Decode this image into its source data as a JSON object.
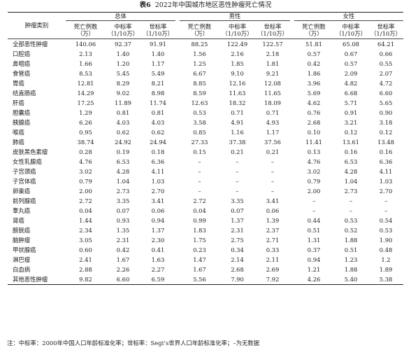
{
  "chart_data": {
    "type": "table",
    "table_number": "表6",
    "title": "2022年中国城市地区恶性肿瘤死亡情况",
    "row_header": "肿瘤类别",
    "groups": [
      "总体",
      "男性",
      "女性"
    ],
    "columns": [
      {
        "name": "死亡例数",
        "unit": "（万）"
      },
      {
        "name": "中标率",
        "unit": "（1/10万）"
      },
      {
        "name": "世标率",
        "unit": "（1/10万）"
      }
    ],
    "rows": [
      {
        "name": "全部恶性肿瘤",
        "values": [
          "140.06",
          "92.37",
          "91.91",
          "88.25",
          "122.49",
          "122.57",
          "51.81",
          "65.08",
          "64.21"
        ]
      },
      {
        "name": "口腔癌",
        "values": [
          "2.13",
          "1.40",
          "1.40",
          "1.56",
          "2.16",
          "2.18",
          "0.57",
          "0.67",
          "0.66"
        ]
      },
      {
        "name": "鼻咽癌",
        "values": [
          "1.66",
          "1.20",
          "1.17",
          "1.25",
          "1.85",
          "1.81",
          "0.42",
          "0.57",
          "0.55"
        ]
      },
      {
        "name": "食管癌",
        "values": [
          "8.53",
          "5.45",
          "5.49",
          "6.67",
          "9.10",
          "9.21",
          "1.86",
          "2.09",
          "2.07"
        ]
      },
      {
        "name": "胃癌",
        "values": [
          "12.81",
          "8.29",
          "8.21",
          "8.85",
          "12.16",
          "12.08",
          "3.96",
          "4.82",
          "4.72"
        ]
      },
      {
        "name": "结直肠癌",
        "values": [
          "14.29",
          "9.02",
          "8.98",
          "8.59",
          "11.63",
          "11.65",
          "5.69",
          "6.68",
          "6.60"
        ]
      },
      {
        "name": "肝癌",
        "values": [
          "17.25",
          "11.89",
          "11.74",
          "12.63",
          "18.32",
          "18.09",
          "4.62",
          "5.71",
          "5.65"
        ]
      },
      {
        "name": "胆囊癌",
        "values": [
          "1.29",
          "0.81",
          "0.81",
          "0.53",
          "0.71",
          "0.71",
          "0.76",
          "0.91",
          "0.90"
        ]
      },
      {
        "name": "胰腺癌",
        "values": [
          "6.26",
          "4.03",
          "4.03",
          "3.58",
          "4.91",
          "4.93",
          "2.68",
          "3.21",
          "3.18"
        ]
      },
      {
        "name": "喉癌",
        "values": [
          "0.95",
          "0.62",
          "0.62",
          "0.85",
          "1.16",
          "1.17",
          "0.10",
          "0.12",
          "0.12"
        ]
      },
      {
        "name": "肺癌",
        "values": [
          "38.74",
          "24.92",
          "24.94",
          "27.33",
          "37.38",
          "37.56",
          "11.41",
          "13.61",
          "13.48"
        ]
      },
      {
        "name": "皮肤黑色素瘤",
        "values": [
          "0.28",
          "0.19",
          "0.18",
          "0.15",
          "0.21",
          "0.21",
          "0.13",
          "0.16",
          "0.16"
        ]
      },
      {
        "name": "女性乳腺癌",
        "values": [
          "4.76",
          "6.53",
          "6.36",
          "–",
          "–",
          "–",
          "4.76",
          "6.53",
          "6.36"
        ]
      },
      {
        "name": "子宫颈癌",
        "values": [
          "3.02",
          "4.28",
          "4.11",
          "–",
          "–",
          "–",
          "3.02",
          "4.28",
          "4.11"
        ]
      },
      {
        "name": "子宫体癌",
        "values": [
          "0.79",
          "1.04",
          "1.03",
          "–",
          "–",
          "–",
          "0.79",
          "1.04",
          "1.03"
        ]
      },
      {
        "name": "卵巢癌",
        "values": [
          "2.00",
          "2.73",
          "2.70",
          "–",
          "–",
          "–",
          "2.00",
          "2.73",
          "2.70"
        ]
      },
      {
        "name": "前列腺癌",
        "values": [
          "2.72",
          "3.35",
          "3.41",
          "2.72",
          "3.35",
          "3.41",
          "–",
          "–",
          "–"
        ]
      },
      {
        "name": "睾丸癌",
        "values": [
          "0.04",
          "0.07",
          "0.06",
          "0.04",
          "0.07",
          "0.06",
          "–",
          "–",
          "–"
        ]
      },
      {
        "name": "肾癌",
        "values": [
          "1.44",
          "0.93",
          "0.94",
          "0.99",
          "1.37",
          "1.39",
          "0.44",
          "0.53",
          "0.54"
        ]
      },
      {
        "name": "膀胱癌",
        "values": [
          "2.34",
          "1.35",
          "1.37",
          "1.83",
          "2.31",
          "2.37",
          "0.51",
          "0.52",
          "0.53"
        ]
      },
      {
        "name": "脑肿瘤",
        "values": [
          "3.05",
          "2.31",
          "2.30",
          "1.75",
          "2.75",
          "2.71",
          "1.31",
          "1.88",
          "1.90"
        ]
      },
      {
        "name": "甲状腺癌",
        "values": [
          "0.60",
          "0.42",
          "0.41",
          "0.23",
          "0.34",
          "0.33",
          "0.37",
          "0.51",
          "0.48"
        ]
      },
      {
        "name": "淋巴瘤",
        "values": [
          "2.41",
          "1.67",
          "1.63",
          "1.47",
          "2.14",
          "2.11",
          "0.94",
          "1.23",
          "1.2"
        ]
      },
      {
        "name": "白血病",
        "values": [
          "2.88",
          "2.26",
          "2.27",
          "1.67",
          "2.68",
          "2.69",
          "1.21",
          "1.88",
          "1.89"
        ]
      },
      {
        "name": "其他恶性肿瘤",
        "values": [
          "9.82",
          "6.60",
          "6.59",
          "5.56",
          "7.90",
          "7.92",
          "4.26",
          "5.40",
          "5.38"
        ]
      }
    ],
    "note": "注：中标率：2000年中国人口年龄标准化率；世标率：Segi’s世界人口年龄标准化率；–为无数据"
  }
}
